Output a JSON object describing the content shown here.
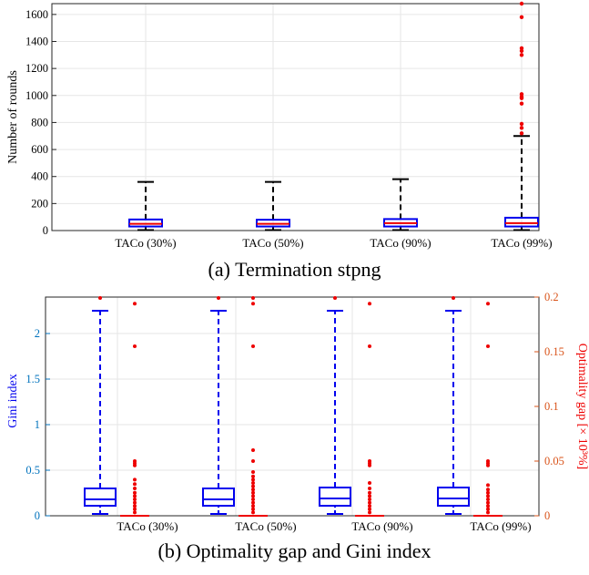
{
  "captions": {
    "a": "(a) Termination stpng",
    "b": "(b) Optimality gap and Gini index"
  },
  "colors": {
    "box_blue": "#0000ee",
    "median_red": "#ee0000",
    "outlier_red": "#ee0000",
    "left_axis": "#0072bd",
    "right_axis": "#d95319",
    "grid": "#e6e6e6"
  },
  "chart_data": [
    {
      "type": "box",
      "title": "",
      "xlabel": "",
      "ylabel": "Number of rounds",
      "ylim": [
        0,
        1680
      ],
      "yticks": [
        0,
        200,
        400,
        600,
        800,
        1000,
        1200,
        1400,
        1600
      ],
      "grid": true,
      "categories": [
        "TACo (30%)",
        "TACo (50%)",
        "TACo (90%)",
        "TACo (99%)"
      ],
      "boxes": [
        {
          "whisker_low": 3,
          "q1": 30,
          "median": 50,
          "q3": 82,
          "whisker_high": 360,
          "outliers": []
        },
        {
          "whisker_low": 3,
          "q1": 30,
          "median": 50,
          "q3": 80,
          "whisker_high": 360,
          "outliers": []
        },
        {
          "whisker_low": 3,
          "q1": 30,
          "median": 55,
          "q3": 85,
          "whisker_high": 380,
          "outliers": []
        },
        {
          "whisker_low": 3,
          "q1": 30,
          "median": 55,
          "q3": 95,
          "whisker_high": 700,
          "outliers": [
            720,
            760,
            790,
            940,
            980,
            990,
            1010,
            1300,
            1330,
            1350,
            1580,
            1680
          ]
        }
      ]
    },
    {
      "type": "box",
      "title": "",
      "xlabel": "",
      "ylabel": "Gini index",
      "y2label": "Optimality gap [× 10³%]",
      "ylim": [
        0,
        2.4
      ],
      "yticks": [
        0,
        0.5,
        1,
        1.5,
        2
      ],
      "y2lim": [
        0,
        0.2
      ],
      "y2ticks": [
        0,
        0.05,
        0.1,
        0.15,
        0.2
      ],
      "grid": true,
      "categories": [
        "TACo (30%)",
        "TACo (50%)",
        "TACo (90%)",
        "TACo (99%)"
      ],
      "gini_boxes": [
        {
          "whisker_low": 0.02,
          "q1": 0.11,
          "median": 0.18,
          "q3": 0.3,
          "whisker_high": 2.25,
          "outliers": [
            2.4
          ]
        },
        {
          "whisker_low": 0.02,
          "q1": 0.11,
          "median": 0.18,
          "q3": 0.3,
          "whisker_high": 2.25,
          "outliers": [
            2.4
          ]
        },
        {
          "whisker_low": 0.02,
          "q1": 0.11,
          "median": 0.19,
          "q3": 0.31,
          "whisker_high": 2.25,
          "outliers": [
            2.4
          ]
        },
        {
          "whisker_low": 0.02,
          "q1": 0.11,
          "median": 0.19,
          "q3": 0.31,
          "whisker_high": 2.25,
          "outliers": [
            2.4
          ]
        }
      ],
      "gap_boxes": [
        {
          "median": 0,
          "outliers": [
            0.003,
            0.006,
            0.009,
            0.012,
            0.015,
            0.018,
            0.021,
            0.025,
            0.029,
            0.033,
            0.046,
            0.048,
            0.05,
            0.155,
            0.194
          ]
        },
        {
          "median": 0,
          "outliers": [
            0.003,
            0.006,
            0.009,
            0.012,
            0.015,
            0.018,
            0.021,
            0.024,
            0.027,
            0.03,
            0.033,
            0.036,
            0.04,
            0.05,
            0.06,
            0.155,
            0.194,
            0.2
          ]
        },
        {
          "median": 0,
          "outliers": [
            0.003,
            0.006,
            0.009,
            0.012,
            0.015,
            0.018,
            0.021,
            0.025,
            0.03,
            0.046,
            0.048,
            0.05,
            0.155,
            0.194
          ]
        },
        {
          "median": 0,
          "outliers": [
            0.003,
            0.006,
            0.009,
            0.012,
            0.015,
            0.018,
            0.021,
            0.024,
            0.028,
            0.046,
            0.048,
            0.05,
            0.155,
            0.194
          ]
        }
      ]
    }
  ]
}
